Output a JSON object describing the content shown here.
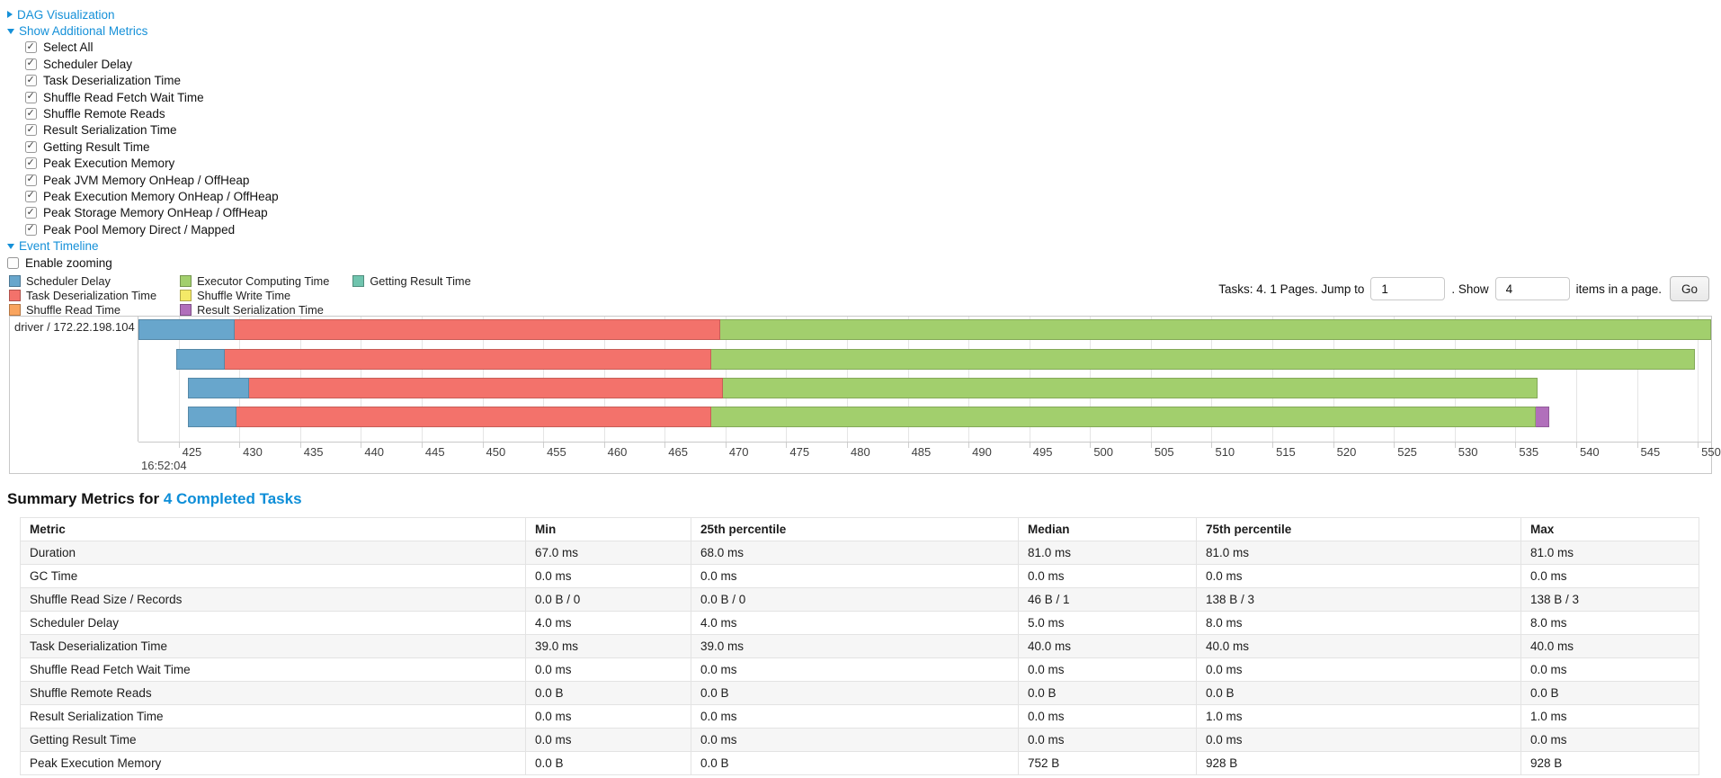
{
  "colors": {
    "link": "#1590d8",
    "heading_link": "#0d8ed8",
    "scheduler_delay": "#68A6CC",
    "task_deserialization": "#F3726B",
    "shuffle_read": "#F9A45E",
    "executor_computing": "#A2CF6D",
    "shuffle_write": "#F4E968",
    "result_serialization": "#B16FBB",
    "getting_result": "#70C4AE"
  },
  "toggles": {
    "dag": "DAG Visualization",
    "metrics": "Show Additional Metrics",
    "timeline": "Event Timeline"
  },
  "metric_checkboxes": [
    {
      "label": "Select All",
      "checked": true
    },
    {
      "label": "Scheduler Delay",
      "checked": true
    },
    {
      "label": "Task Deserialization Time",
      "checked": true
    },
    {
      "label": "Shuffle Read Fetch Wait Time",
      "checked": true
    },
    {
      "label": "Shuffle Remote Reads",
      "checked": true
    },
    {
      "label": "Result Serialization Time",
      "checked": true
    },
    {
      "label": "Getting Result Time",
      "checked": true
    },
    {
      "label": "Peak Execution Memory",
      "checked": true
    },
    {
      "label": "Peak JVM Memory OnHeap / OffHeap",
      "checked": true
    },
    {
      "label": "Peak Execution Memory OnHeap / OffHeap",
      "checked": true
    },
    {
      "label": "Peak Storage Memory OnHeap / OffHeap",
      "checked": true
    },
    {
      "label": "Peak Pool Memory Direct / Mapped",
      "checked": true
    }
  ],
  "enable_zooming": {
    "label": "Enable zooming",
    "checked": false
  },
  "legend_columns": [
    [
      {
        "label": "Scheduler Delay",
        "color_key": "scheduler_delay"
      },
      {
        "label": "Task Deserialization Time",
        "color_key": "task_deserialization"
      },
      {
        "label": "Shuffle Read Time",
        "color_key": "shuffle_read"
      }
    ],
    [
      {
        "label": "Executor Computing Time",
        "color_key": "executor_computing"
      },
      {
        "label": "Shuffle Write Time",
        "color_key": "shuffle_write"
      },
      {
        "label": "Result Serialization Time",
        "color_key": "result_serialization"
      }
    ],
    [
      {
        "label": "Getting Result Time",
        "color_key": "getting_result"
      }
    ]
  ],
  "pagination": {
    "prefix": "Tasks: 4. 1 Pages. Jump to",
    "jump_value": "1",
    "middle": ". Show",
    "show_value": "4",
    "suffix": "items in a page.",
    "go_label": "Go"
  },
  "timeline": {
    "row_label": "driver / 172.22.198.104",
    "axis_min": 421.7,
    "axis_max": 551.1,
    "tick_start": 425,
    "tick_end": 550,
    "tick_step": 5,
    "major_label": "16:52:04",
    "bars": [
      {
        "row": 0,
        "start": 421.7,
        "segments": [
          [
            "scheduler_delay",
            7.9
          ],
          [
            "task_deserialization",
            40.0
          ],
          [
            "executor_computing",
            81.5
          ]
        ]
      },
      {
        "row": 1,
        "start": 424.8,
        "segments": [
          [
            "scheduler_delay",
            4.0
          ],
          [
            "task_deserialization",
            40.0
          ],
          [
            "executor_computing",
            81.0
          ]
        ]
      },
      {
        "row": 2,
        "start": 425.8,
        "segments": [
          [
            "scheduler_delay",
            5.0
          ],
          [
            "task_deserialization",
            39.0
          ],
          [
            "executor_computing",
            67.0
          ]
        ]
      },
      {
        "row": 3,
        "start": 425.8,
        "segments": [
          [
            "scheduler_delay",
            4.0
          ],
          [
            "task_deserialization",
            39.0
          ],
          [
            "executor_computing",
            67.9
          ],
          [
            "result_serialization",
            1.1
          ]
        ]
      }
    ]
  },
  "summary": {
    "heading_prefix": "Summary Metrics for ",
    "heading_link": "4 Completed Tasks",
    "columns": [
      "Metric",
      "Min",
      "25th percentile",
      "Median",
      "75th percentile",
      "Max"
    ],
    "rows": [
      [
        "Duration",
        "67.0 ms",
        "68.0 ms",
        "81.0 ms",
        "81.0 ms",
        "81.0 ms"
      ],
      [
        "GC Time",
        "0.0 ms",
        "0.0 ms",
        "0.0 ms",
        "0.0 ms",
        "0.0 ms"
      ],
      [
        "Shuffle Read Size / Records",
        "0.0 B / 0",
        "0.0 B / 0",
        "46 B / 1",
        "138 B / 3",
        "138 B / 3"
      ],
      [
        "Scheduler Delay",
        "4.0 ms",
        "4.0 ms",
        "5.0 ms",
        "8.0 ms",
        "8.0 ms"
      ],
      [
        "Task Deserialization Time",
        "39.0 ms",
        "39.0 ms",
        "40.0 ms",
        "40.0 ms",
        "40.0 ms"
      ],
      [
        "Shuffle Read Fetch Wait Time",
        "0.0 ms",
        "0.0 ms",
        "0.0 ms",
        "0.0 ms",
        "0.0 ms"
      ],
      [
        "Shuffle Remote Reads",
        "0.0 B",
        "0.0 B",
        "0.0 B",
        "0.0 B",
        "0.0 B"
      ],
      [
        "Result Serialization Time",
        "0.0 ms",
        "0.0 ms",
        "0.0 ms",
        "1.0 ms",
        "1.0 ms"
      ],
      [
        "Getting Result Time",
        "0.0 ms",
        "0.0 ms",
        "0.0 ms",
        "0.0 ms",
        "0.0 ms"
      ],
      [
        "Peak Execution Memory",
        "0.0 B",
        "0.0 B",
        "752 B",
        "928 B",
        "928 B"
      ]
    ]
  }
}
